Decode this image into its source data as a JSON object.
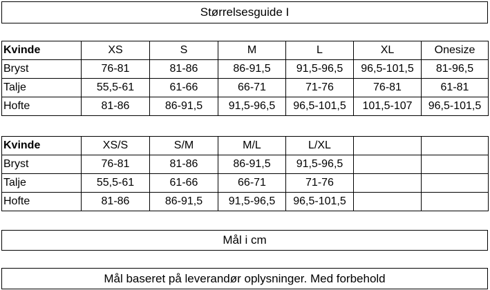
{
  "header": {
    "title": "Størrelsesguide I"
  },
  "tables": [
    {
      "columns": [
        "Kvinde",
        "XS",
        "S",
        "M",
        "L",
        "XL",
        "Onesize"
      ],
      "rows": [
        [
          "Bryst",
          "76-81",
          "81-86",
          "86-91,5",
          "91,5-96,5",
          "96,5-101,5",
          "81-96,5"
        ],
        [
          "Talje",
          "55,5-61",
          "61-66",
          "66-71",
          "71-76",
          "76-81",
          "61-81"
        ],
        [
          "Hofte",
          "81-86",
          "86-91,5",
          "91,5-96,5",
          "96,5-101,5",
          "101,5-107",
          "96,5-101,5"
        ]
      ]
    },
    {
      "columns": [
        "Kvinde",
        "XS/S",
        "S/M",
        "M/L",
        "L/XL"
      ],
      "rows": [
        [
          "Bryst",
          "76-81",
          "81-86",
          "86-91,5",
          "91,5-96,5"
        ],
        [
          "Talje",
          "55,5-61",
          "61-66",
          "66-71",
          "71-76"
        ],
        [
          "Hofte",
          "81-86",
          "86-91,5",
          "91,5-96,5",
          "96,5-101,5"
        ]
      ]
    }
  ],
  "notes": [
    "Mål i cm",
    "Mål baseret på leverandør oplysninger. Med forbehold"
  ]
}
